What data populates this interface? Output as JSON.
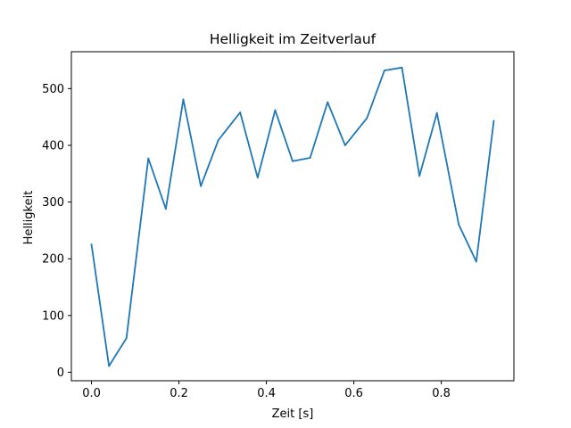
{
  "chart_data": {
    "type": "line",
    "title": "Helligkeit im Zeitverlauf",
    "xlabel": "Zeit [s]",
    "ylabel": "Helligkeit",
    "xlim": [
      -0.046,
      0.966
    ],
    "ylim": [
      -15,
      565
    ],
    "xticks": [
      0.0,
      0.2,
      0.4,
      0.6,
      0.8
    ],
    "xtick_labels": [
      "0.0",
      "0.2",
      "0.4",
      "0.6",
      "0.8"
    ],
    "yticks": [
      0,
      100,
      200,
      300,
      400,
      500
    ],
    "ytick_labels": [
      "0",
      "100",
      "200",
      "300",
      "400",
      "500"
    ],
    "grid": false,
    "line_color": "#1f77b4",
    "series": [
      {
        "x": [
          0.0,
          0.04,
          0.08,
          0.13,
          0.17,
          0.21,
          0.25,
          0.29,
          0.34,
          0.38,
          0.42,
          0.46,
          0.5,
          0.54,
          0.58,
          0.63,
          0.67,
          0.71,
          0.75,
          0.79,
          0.84,
          0.88,
          0.92
        ],
        "y": [
          225,
          11,
          60,
          377,
          288,
          481,
          328,
          409,
          458,
          343,
          462,
          372,
          378,
          476,
          400,
          448,
          532,
          537,
          346,
          457,
          260,
          195,
          443
        ]
      }
    ]
  }
}
